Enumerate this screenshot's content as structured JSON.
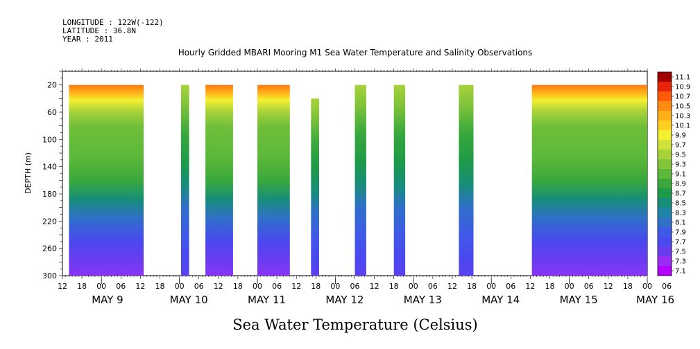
{
  "meta": {
    "longitude": "LONGITUDE : 122W(-122)",
    "latitude": "LATITUDE : 36.8N",
    "year": "YEAR : 2011"
  },
  "chart_data": {
    "type": "heatmap",
    "title": "Hourly Gridded MBARI Mooring M1 Sea Water Temperature and Salinity Observations",
    "xlabel": "Sea Water Temperature (Celsius)",
    "ylabel": "DEPTH (m)",
    "x_range_hours": [
      0,
      180
    ],
    "x_start_date": "2011-05-08 12:00",
    "x_hour_ticks": [
      "12",
      "18",
      "00",
      "06",
      "12",
      "18",
      "00",
      "06",
      "12",
      "18",
      "00",
      "06",
      "12",
      "18",
      "00",
      "06",
      "12",
      "18",
      "00",
      "06",
      "12",
      "18",
      "00",
      "06",
      "12",
      "18",
      "00",
      "06",
      "12",
      "18",
      "00",
      "06"
    ],
    "x_day_labels": [
      "MAY  9",
      "MAY 10",
      "MAY 11",
      "MAY 12",
      "MAY 13",
      "MAY 14",
      "MAY 15",
      "MAY 16"
    ],
    "y_range": [
      300,
      0
    ],
    "y_ticks": [
      20,
      60,
      100,
      140,
      180,
      220,
      260,
      300
    ],
    "colorbar": {
      "levels": [
        "7.1",
        "7.3",
        "7.5",
        "7.7",
        "7.9",
        "8.1",
        "8.3",
        "8.5",
        "8.7",
        "8.9",
        "9.1",
        "9.3",
        "9.5",
        "9.7",
        "9.9",
        "10.1",
        "10.3",
        "10.5",
        "10.7",
        "10.9",
        "11.1"
      ],
      "colors": [
        "#b400ff",
        "#9b2cf5",
        "#6a3cf0",
        "#4a48ef",
        "#3f5ae6",
        "#2f70c8",
        "#1f86a8",
        "#178e78",
        "#1e9a48",
        "#3aa83c",
        "#5cb83a",
        "#82c43a",
        "#a8d23a",
        "#d0e23a",
        "#f4f030",
        "#ffd020",
        "#ffb018",
        "#ff8a10",
        "#ff5a08",
        "#e82408",
        "#a00000"
      ]
    },
    "data_segments_hours": [
      {
        "start": 2.0,
        "end": 25.0,
        "top_depth": 20
      },
      {
        "start": 36.5,
        "end": 39.0,
        "top_depth": 20
      },
      {
        "start": 44.0,
        "end": 52.5,
        "top_depth": 20
      },
      {
        "start": 60.0,
        "end": 70.0,
        "top_depth": 20
      },
      {
        "start": 76.5,
        "end": 79.0,
        "top_depth": 40
      },
      {
        "start": 90.0,
        "end": 93.5,
        "top_depth": 20
      },
      {
        "start": 102.0,
        "end": 105.5,
        "top_depth": 20
      },
      {
        "start": 122.0,
        "end": 126.5,
        "top_depth": 20
      },
      {
        "start": 144.5,
        "end": 180.0,
        "top_depth": 20
      }
    ]
  }
}
